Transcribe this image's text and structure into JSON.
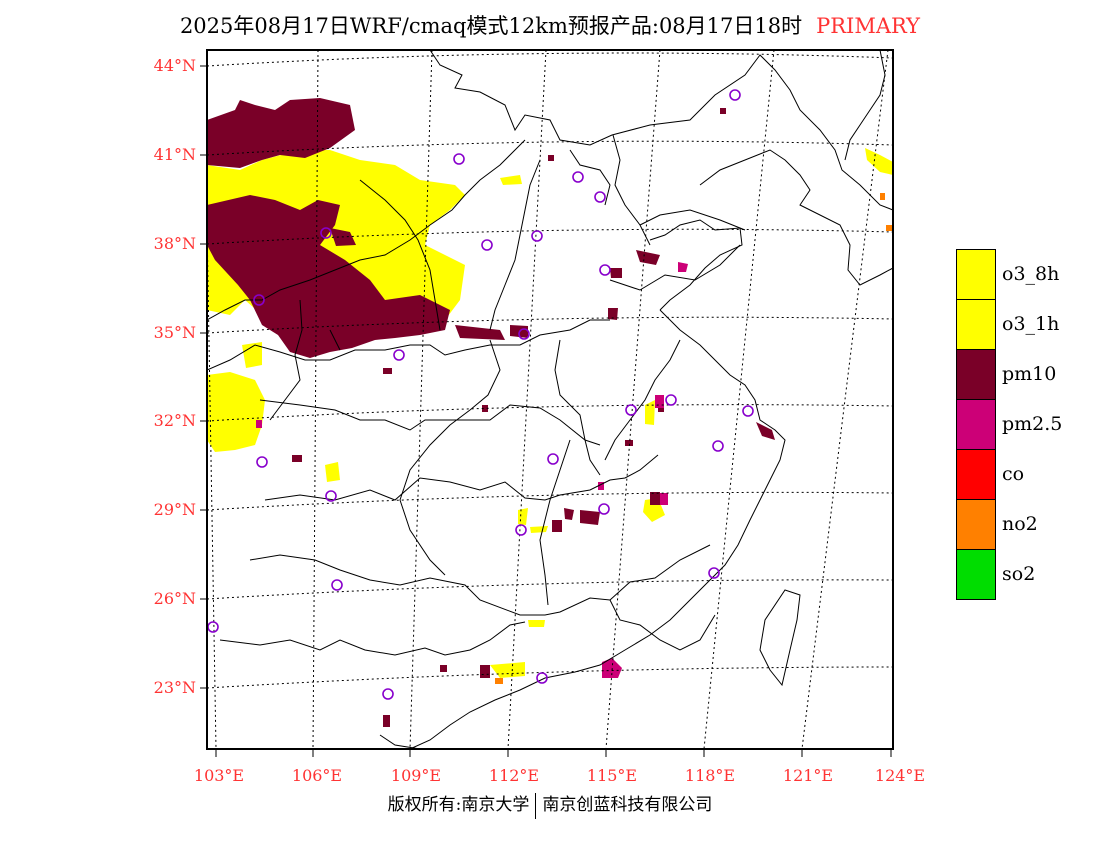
{
  "title": {
    "main": "2025年08月17日WRF/cmaq模式12km预报产品:08月17日18时",
    "tag": "PRIMARY"
  },
  "lat_labels": [
    "44°N",
    "41°N",
    "38°N",
    "35°N",
    "32°N",
    "29°N",
    "26°N",
    "23°N"
  ],
  "lon_labels": [
    "103°E",
    "106°E",
    "109°E",
    "112°E",
    "115°E",
    "118°E",
    "121°E",
    "124°E"
  ],
  "legend": [
    {
      "label": "o3_8h",
      "color": "#ffff00"
    },
    {
      "label": "o3_1h",
      "color": "#ffff00"
    },
    {
      "label": "pm10",
      "color": "#7a0028"
    },
    {
      "label": "pm2.5",
      "color": "#cc0077"
    },
    {
      "label": "co",
      "color": "#ff0000"
    },
    {
      "label": "no2",
      "color": "#ff8000"
    },
    {
      "label": "so2",
      "color": "#00dd00"
    }
  ],
  "footer": {
    "left": "版权所有:南京大学",
    "right": "南京创蓝科技有限公司"
  },
  "colors": {
    "ozone": "#ffff00",
    "pm10": "#7a0028",
    "pm25": "#cc0077",
    "no2": "#ff8000",
    "station": "#8800cc",
    "label": "#ff3333"
  }
}
